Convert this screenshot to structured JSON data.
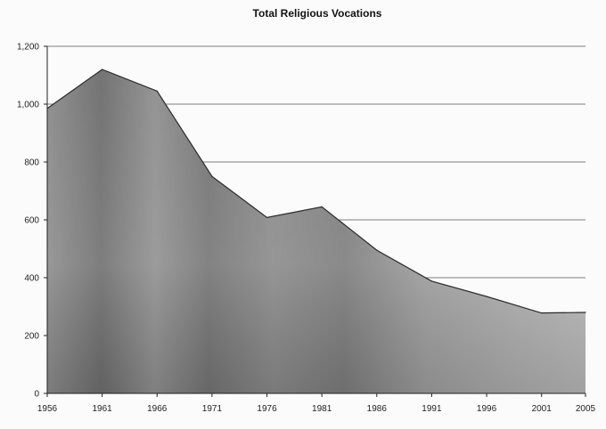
{
  "chart_data": {
    "type": "area",
    "title": "Total Religious Vocations",
    "xlabel": "",
    "ylabel": "",
    "x": [
      1956,
      1961,
      1966,
      1971,
      1976,
      1981,
      1986,
      1991,
      1996,
      2001,
      2005
    ],
    "series": [
      {
        "values": [
          985,
          1120,
          1045,
          750,
          608,
          645,
          495,
          388,
          335,
          278,
          280
        ]
      }
    ],
    "ylim": [
      0,
      1200
    ],
    "yticks": [
      0,
      200,
      400,
      600,
      800,
      1000,
      1200
    ],
    "ytick_labels": [
      "0",
      "200",
      "400",
      "600",
      "800",
      "1,000",
      "1,200"
    ],
    "xtick_labels": [
      "1956",
      "1961",
      "1966",
      "1971",
      "1976",
      "1981",
      "1986",
      "1991",
      "1996",
      "2001",
      "2005"
    ],
    "grid": true,
    "legend": "none",
    "colors": {
      "area_light": "#b8b8b8",
      "area_dark": "#6f6f6f",
      "line": "#2a2a2a",
      "grid": "#555555",
      "background": "#fbfbfb"
    }
  }
}
